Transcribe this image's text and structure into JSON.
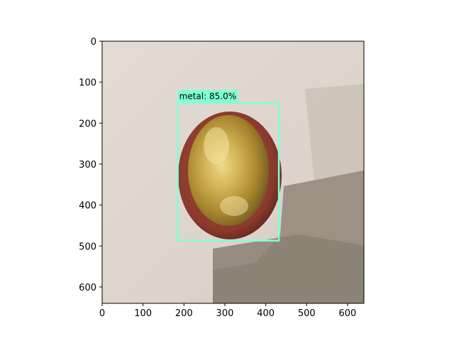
{
  "figure": {
    "type": "image-plot-with-detection",
    "x_ticks": [
      "0",
      "100",
      "200",
      "300",
      "400",
      "500",
      "600"
    ],
    "y_ticks": [
      "0",
      "100",
      "200",
      "300",
      "400",
      "500",
      "600"
    ],
    "xlim": [
      0,
      640
    ],
    "ylim": [
      640,
      0
    ],
    "y_axis_inverted": true,
    "grid": false
  },
  "image": {
    "subject": "round gold metal lid with red rim on a pale wall",
    "colors": {
      "background": "#ddd4cc",
      "shadow": "#8f8579",
      "rim": "#8a3a2c",
      "metal": "#c8a546"
    }
  },
  "detection": {
    "label_text": "metal: 85.0%",
    "class": "metal",
    "score_percent": 85.0,
    "box_data_units": {
      "xmin": 185,
      "ymin": 150,
      "xmax": 432,
      "ymax": 487
    },
    "box_color": "#7fffd4"
  }
}
